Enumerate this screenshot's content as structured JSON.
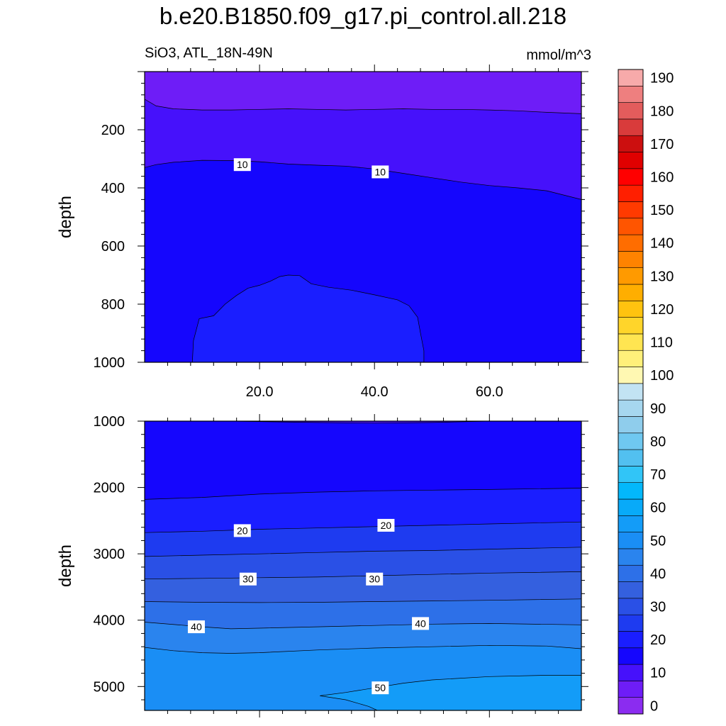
{
  "title": "b.e20.B1850.f09_g17.pi_control.all.218",
  "subtitle_left": "SiO3, ATL_18N-49N",
  "subtitle_right": "mmol/m^3",
  "colorbar": {
    "levels": [
      0,
      5,
      10,
      15,
      20,
      25,
      30,
      35,
      40,
      45,
      50,
      55,
      60,
      65,
      70,
      75,
      80,
      85,
      90,
      95,
      100,
      105,
      110,
      115,
      120,
      125,
      130,
      135,
      140,
      145,
      150,
      155,
      160,
      165,
      170,
      175,
      180,
      185,
      190
    ],
    "tick_labels": [
      "0",
      "10",
      "20",
      "30",
      "40",
      "50",
      "60",
      "70",
      "80",
      "90",
      "100",
      "110",
      "120",
      "130",
      "140",
      "150",
      "160",
      "170",
      "180",
      "190"
    ],
    "colors": [
      "#8b2cf0",
      "#6e1df7",
      "#4611fb",
      "#1506fd",
      "#1a1eff",
      "#1e3bf0",
      "#2a50e6",
      "#3460df",
      "#2d70e8",
      "#2a84ee",
      "#1a8ef5",
      "#139cf8",
      "#08aaf9",
      "#03b8fb",
      "#31c5f7",
      "#52c0f0",
      "#6fc8f0",
      "#8fcdec",
      "#a6d7ef",
      "#c2e3f3",
      "#fff8b2",
      "#fff07a",
      "#ffe551",
      "#ffd52a",
      "#ffc30f",
      "#ffae00",
      "#ff9a00",
      "#ff8300",
      "#ff6d00",
      "#ff5500",
      "#ff3a00",
      "#ff1f00",
      "#ff0000",
      "#e00000",
      "#cc0f0f",
      "#d93b3b",
      "#e35c5c",
      "#ee7f7f",
      "#f7aaaa"
    ]
  },
  "chart_data": [
    {
      "type": "heatmap",
      "panel": "upper",
      "xlim": [
        0,
        76
      ],
      "ylim": [
        1000,
        0
      ],
      "xtick_labels": [
        "20.0",
        "40.0",
        "60.0"
      ],
      "xticks": [
        20,
        40,
        60
      ],
      "ytick_labels": [
        "200",
        "400",
        "600",
        "800",
        "1000"
      ],
      "yticks": [
        200,
        400,
        600,
        800,
        1000
      ],
      "ylabel": "depth",
      "contour_labels": [
        {
          "text": "10",
          "x": 17,
          "depth": 320
        },
        {
          "text": "10",
          "x": 41,
          "depth": 345
        }
      ],
      "layers": [
        {
          "value_range": [
            0,
            5
          ],
          "color_index": 1,
          "top_depth": 20,
          "lower_boundary": [
            [
              0,
              95
            ],
            [
              2,
              118
            ],
            [
              5,
              128
            ],
            [
              10,
              132
            ],
            [
              15,
              132
            ],
            [
              20,
              130
            ],
            [
              25,
              128
            ],
            [
              30,
              130
            ],
            [
              35,
              132
            ],
            [
              40,
              130
            ],
            [
              45,
              128
            ],
            [
              50,
              130
            ],
            [
              55,
              130
            ],
            [
              60,
              132
            ],
            [
              65,
              135
            ],
            [
              70,
              140
            ],
            [
              76,
              145
            ]
          ]
        },
        {
          "value_range": [
            5,
            10
          ],
          "color_index": 2,
          "lower_boundary": [
            [
              0,
              330
            ],
            [
              2,
              320
            ],
            [
              5,
              312
            ],
            [
              10,
              305
            ],
            [
              15,
              306
            ],
            [
              20,
              310
            ],
            [
              25,
              318
            ],
            [
              30,
              322
            ],
            [
              35,
              325
            ],
            [
              40,
              335
            ],
            [
              45,
              350
            ],
            [
              50,
              365
            ],
            [
              55,
              380
            ],
            [
              60,
              392
            ],
            [
              65,
              400
            ],
            [
              70,
              410
            ],
            [
              76,
              440
            ]
          ]
        },
        {
          "value_range": [
            10,
            15
          ],
          "color_index": 3
        },
        {
          "value_range": [
            15,
            20
          ],
          "color_index": 4,
          "region_outline": [
            [
              8.3,
              1000
            ],
            [
              8.5,
              925
            ],
            [
              9.5,
              850
            ],
            [
              12,
              840
            ],
            [
              14,
              800
            ],
            [
              16,
              770
            ],
            [
              18,
              745
            ],
            [
              20,
              735
            ],
            [
              22,
              720
            ],
            [
              23.5,
              705
            ],
            [
              25,
              700
            ],
            [
              27,
              702
            ],
            [
              29,
              730
            ],
            [
              32,
              742
            ],
            [
              36,
              752
            ],
            [
              40,
              768
            ],
            [
              44,
              785
            ],
            [
              46,
              805
            ],
            [
              47.5,
              845
            ],
            [
              48,
              900
            ],
            [
              48.6,
              960
            ],
            [
              48.6,
              1000
            ]
          ]
        }
      ]
    },
    {
      "type": "heatmap",
      "panel": "lower",
      "xlim": [
        0,
        76
      ],
      "ylim": [
        5360,
        1000
      ],
      "ytick_labels": [
        "1000",
        "2000",
        "3000",
        "4000",
        "5000"
      ],
      "yticks": [
        1000,
        2000,
        3000,
        4000,
        5000
      ],
      "ylabel": "depth",
      "contour_labels": [
        {
          "text": "20",
          "x": 17,
          "depth": 2650
        },
        {
          "text": "20",
          "x": 42,
          "depth": 2570
        },
        {
          "text": "30",
          "x": 18,
          "depth": 3380
        },
        {
          "text": "30",
          "x": 40,
          "depth": 3380
        },
        {
          "text": "40",
          "x": 9,
          "depth": 4100
        },
        {
          "text": "40",
          "x": 48,
          "depth": 4050
        },
        {
          "text": "50",
          "x": 41,
          "depth": 5020
        }
      ],
      "layers": [
        {
          "value_range": [
            10,
            15
          ],
          "color_index": 3,
          "lower_boundary": [
            [
              0,
              2180
            ],
            [
              10,
              2150
            ],
            [
              20,
              2100
            ],
            [
              30,
              2070
            ],
            [
              40,
              2050
            ],
            [
              50,
              2040
            ],
            [
              60,
              2030
            ],
            [
              76,
              2010
            ]
          ]
        },
        {
          "value_range": [
            15,
            20
          ],
          "color_index": 4,
          "lower_boundary": [
            [
              0,
              2680
            ],
            [
              10,
              2660
            ],
            [
              20,
              2630
            ],
            [
              30,
              2610
            ],
            [
              40,
              2590
            ],
            [
              50,
              2570
            ],
            [
              60,
              2550
            ],
            [
              76,
              2520
            ]
          ]
        },
        {
          "value_range": [
            20,
            25
          ],
          "color_index": 5,
          "lower_boundary": [
            [
              0,
              3040
            ],
            [
              10,
              3020
            ],
            [
              20,
              3000
            ],
            [
              30,
              2980
            ],
            [
              40,
              2960
            ],
            [
              50,
              2950
            ],
            [
              60,
              2930
            ],
            [
              76,
              2900
            ]
          ]
        },
        {
          "value_range": [
            25,
            30
          ],
          "color_index": 6,
          "lower_boundary": [
            [
              0,
              3380
            ],
            [
              10,
              3370
            ],
            [
              20,
              3360
            ],
            [
              30,
              3350
            ],
            [
              40,
              3330
            ],
            [
              50,
              3310
            ],
            [
              60,
              3290
            ],
            [
              76,
              3270
            ]
          ]
        },
        {
          "value_range": [
            30,
            35
          ],
          "color_index": 7,
          "lower_boundary": [
            [
              0,
              3720
            ],
            [
              10,
              3730
            ],
            [
              20,
              3735
            ],
            [
              30,
              3730
            ],
            [
              40,
              3720
            ],
            [
              50,
              3710
            ],
            [
              60,
              3700
            ],
            [
              76,
              3680
            ]
          ]
        },
        {
          "value_range": [
            35,
            40
          ],
          "color_index": 8,
          "lower_boundary": [
            [
              0,
              4030
            ],
            [
              10,
              4100
            ],
            [
              15,
              4130
            ],
            [
              20,
              4120
            ],
            [
              30,
              4100
            ],
            [
              40,
              4080
            ],
            [
              50,
              4060
            ],
            [
              60,
              4050
            ],
            [
              76,
              4070
            ]
          ]
        },
        {
          "value_range": [
            40,
            45
          ],
          "color_index": 9,
          "lower_boundary": [
            [
              0,
              4410
            ],
            [
              5,
              4460
            ],
            [
              10,
              4490
            ],
            [
              15,
              4500
            ],
            [
              20,
              4490
            ],
            [
              30,
              4450
            ],
            [
              40,
              4420
            ],
            [
              50,
              4400
            ],
            [
              60,
              4380
            ],
            [
              70,
              4390
            ],
            [
              76,
              4430
            ]
          ]
        },
        {
          "value_range": [
            45,
            50
          ],
          "color_index": 10
        },
        {
          "value_range": [
            50,
            55
          ],
          "color_index": 11,
          "region_outline": [
            [
              76,
              4830
            ],
            [
              70,
              4830
            ],
            [
              60,
              4850
            ],
            [
              50,
              4900
            ],
            [
              45,
              4950
            ],
            [
              40,
              5020
            ],
            [
              35,
              5090
            ],
            [
              30.5,
              5140
            ],
            [
              35,
              5200
            ],
            [
              39,
              5300
            ],
            [
              40.5,
              5360
            ],
            [
              76,
              5360
            ]
          ]
        },
        {
          "value_range": [
            5,
            10
          ],
          "note": "thin surface sliver",
          "color_index": 2,
          "region_outline": [
            [
              15,
              1000
            ],
            [
              30,
              1020
            ],
            [
              40,
              1030
            ],
            [
              50,
              1020
            ],
            [
              60,
              1000
            ]
          ]
        }
      ]
    }
  ]
}
